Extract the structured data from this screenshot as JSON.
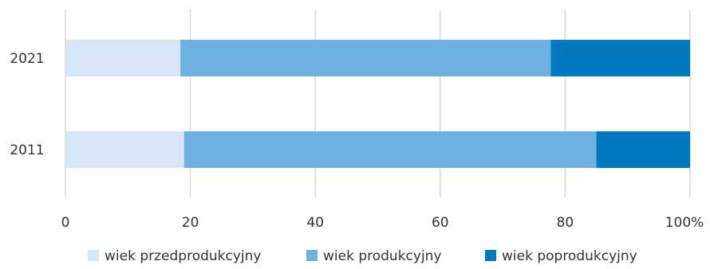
{
  "chart_data": {
    "type": "bar",
    "orientation": "horizontal",
    "stacked": "percent",
    "categories": [
      "2021",
      "2011"
    ],
    "series": [
      {
        "name": "wiek przedprodukcyjny",
        "color": "#d6e6f7",
        "values": [
          18.4,
          19.0
        ]
      },
      {
        "name": "wiek produkcyjny",
        "color": "#6db0e2",
        "values": [
          59.3,
          66.0
        ]
      },
      {
        "name": "wiek poprodukcyjny",
        "color": "#0079c1",
        "values": [
          22.3,
          15.0
        ]
      }
    ],
    "xlim": [
      0,
      100
    ],
    "x_ticks": [
      "0",
      "20",
      "40",
      "60",
      "80",
      "100%"
    ],
    "grid": true,
    "legend_position": "bottom"
  }
}
